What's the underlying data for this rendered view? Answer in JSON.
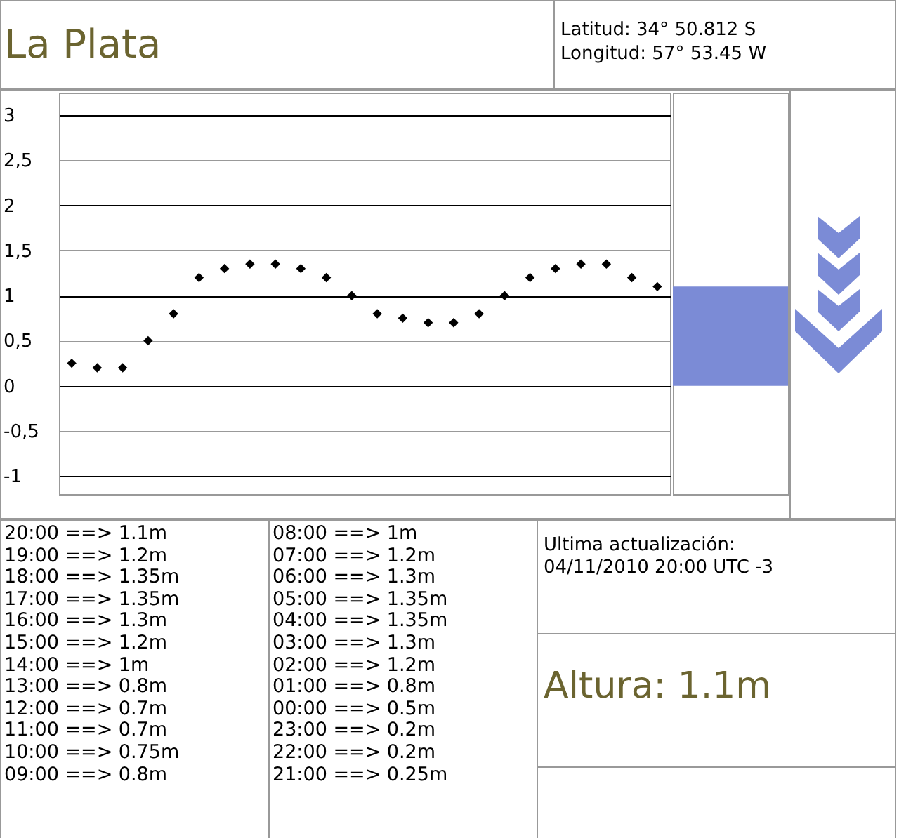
{
  "chart_data": [
    {
      "type": "scatter",
      "title": "La Plata",
      "annotations": [
        "Latitud: 34° 50.812 S",
        "Longitud: 57° 53.45 W",
        "20:00 ==> 1.1m",
        "19:00 ==> 1.2m",
        "18:00 ==> 1.35m",
        "17:00 ==> 1.35m",
        "16:00 ==> 1.3m",
        "15:00 ==> 1.2m",
        "14:00 ==> 1m",
        "13:00 ==> 0.8m",
        "12:00 ==> 0.7m",
        "11:00 ==> 0.7m",
        "10:00 ==> 0.75m",
        "09:00 ==> 0.8m",
        "08:00 ==> 1m",
        "07:00 ==> 1.2m",
        "06:00 ==> 1.3m",
        "05:00 ==> 1.35m",
        "04:00 ==> 1.35m",
        "03:00 ==> 1.3m",
        "02:00 ==> 1.2m",
        "01:00 ==> 0.8m",
        "00:00 ==> 0.5m",
        "23:00 ==> 0.2m",
        "22:00 ==> 0.2m",
        "21:00 ==> 0.25m",
        "Ultima actualización:",
        "04/11/2010 20:00 UTC -3",
        "Altura: 1.1m"
      ],
      "categories": [
        null,
        null,
        null,
        null,
        null,
        null,
        null,
        null,
        null,
        null,
        null,
        null,
        null,
        null,
        null,
        null,
        null,
        null,
        null,
        null,
        null,
        null,
        null,
        null
      ],
      "values": [
        0.25,
        0.2,
        0.2,
        0.5,
        0.8,
        1.2,
        1.3,
        1.35,
        1.35,
        1.3,
        1.2,
        1,
        0.8,
        0.75,
        0.7,
        0.7,
        0.8,
        1,
        1.2,
        1.3,
        1.35,
        1.35,
        1.2,
        1.1
      ],
      "color": "#000000",
      "marker": "diamond",
      "ylim": [
        -1.2,
        3.25
      ],
      "yticks": [
        -1,
        {
          "value": -0.5,
          "label": "-0,5"
        },
        0,
        {
          "value": 0.5,
          "label": "0,5"
        },
        1,
        {
          "value": 1.5,
          "label": "1,5"
        },
        2,
        {
          "value": 2.5,
          "label": "2,5"
        },
        3
      ],
      "grid": "y",
      "tick_labels": "y"
    },
    {
      "type": "bar",
      "categories": [
        null
      ],
      "values": [
        1.1
      ],
      "color": "#7b8bd6",
      "ylim": [
        -1.2,
        3.25
      ],
      "tick_labels": false
    }
  ]
}
